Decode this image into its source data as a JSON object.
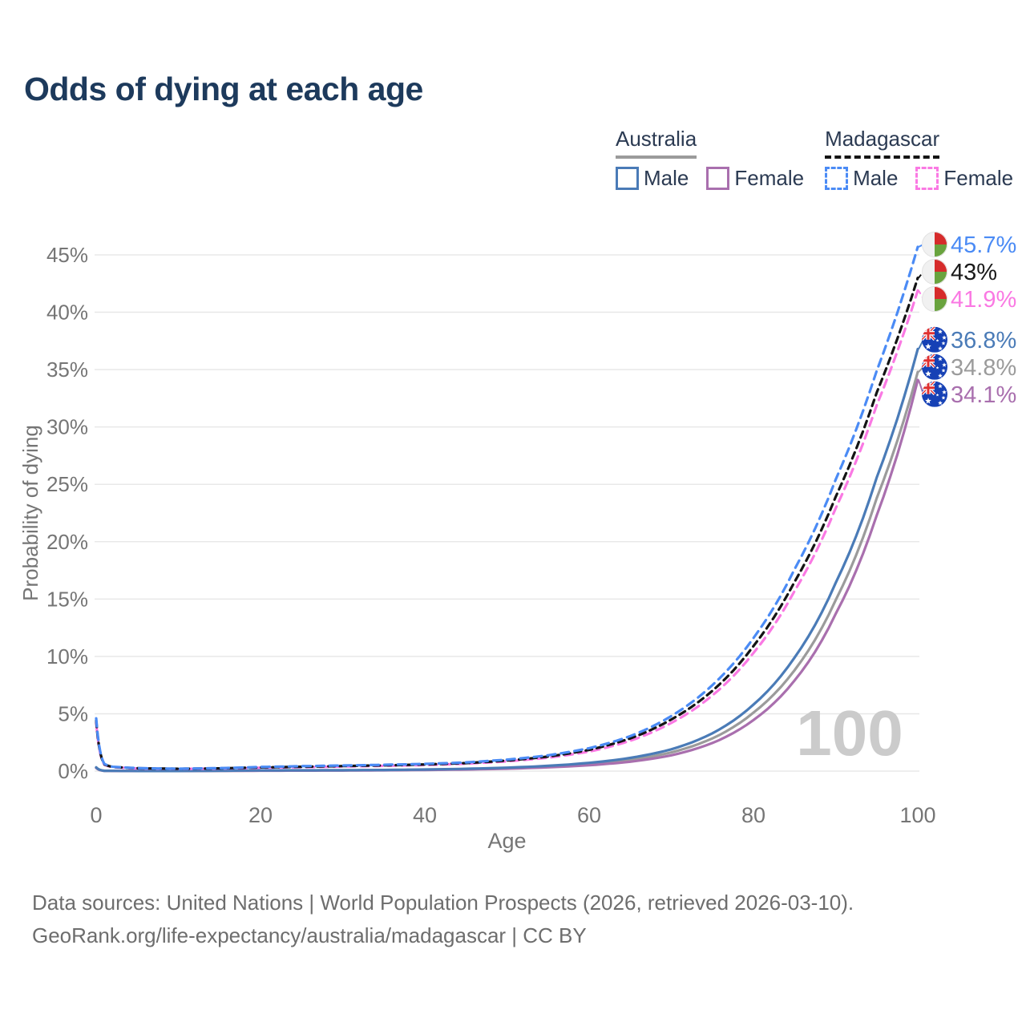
{
  "title": "Odds of dying at each age",
  "legend": {
    "groups": [
      {
        "label": "Australia",
        "line_color": "#9b9b9b",
        "line_style": "solid",
        "items": [
          {
            "label": "Male",
            "color": "#4a7bb7",
            "dash": false
          },
          {
            "label": "Female",
            "color": "#a96fae",
            "dash": false
          }
        ]
      },
      {
        "label": "Madagascar",
        "line_color": "#141414",
        "line_style": "dashed",
        "items": [
          {
            "label": "Male",
            "color": "#4b8bf5",
            "dash": true
          },
          {
            "label": "Female",
            "color": "#fa79e3",
            "dash": true
          }
        ]
      }
    ]
  },
  "age_watermark": "100",
  "footer": {
    "line1": "Data sources: United Nations | World Population Prospects (2026, retrieved 2026-03-10).",
    "line2": "GeoRank.org/life-expectancy/australia/madagascar | CC BY"
  },
  "chart_data": {
    "type": "line",
    "title": "Odds of dying at each age",
    "xlabel": "Age",
    "ylabel": "Probability of dying",
    "xlim": [
      0,
      100
    ],
    "ylim": [
      0,
      46
    ],
    "x_ticks": [
      0,
      20,
      40,
      60,
      80,
      100
    ],
    "y_ticks": [
      0,
      5,
      10,
      15,
      20,
      25,
      30,
      35,
      40,
      45
    ],
    "y_tick_suffix": "%",
    "grid": true,
    "legend_position": "top-right",
    "x": [
      0,
      1,
      2,
      5,
      10,
      15,
      20,
      25,
      30,
      35,
      40,
      45,
      50,
      55,
      60,
      65,
      70,
      75,
      80,
      85,
      90,
      95,
      100
    ],
    "series": [
      {
        "name": "Madagascar Male",
        "country": "Madagascar",
        "sex": "Male",
        "color": "#4b8bf5",
        "label_color": "#4b8bf5",
        "dash": "10 7",
        "flag": "madagascar",
        "end_label": "45.7%",
        "values": [
          4.6,
          0.62,
          0.38,
          0.26,
          0.21,
          0.26,
          0.36,
          0.43,
          0.49,
          0.55,
          0.63,
          0.76,
          1.0,
          1.38,
          2.0,
          3.05,
          4.8,
          7.5,
          11.6,
          17.6,
          25.4,
          34.9,
          45.7
        ]
      },
      {
        "name": "Madagascar Both sexes",
        "country": "Madagascar",
        "sex": "Both",
        "color": "#141414",
        "label_color": "#1a1a1a",
        "dash": "8 6",
        "flag": "madagascar",
        "end_label": "43%",
        "values": [
          4.4,
          0.58,
          0.36,
          0.25,
          0.2,
          0.24,
          0.32,
          0.38,
          0.44,
          0.5,
          0.58,
          0.7,
          0.92,
          1.27,
          1.85,
          2.85,
          4.5,
          7.0,
          10.9,
          16.5,
          23.9,
          33.0,
          43.0
        ]
      },
      {
        "name": "Madagascar Female",
        "country": "Madagascar",
        "sex": "Female",
        "color": "#fa79e3",
        "label_color": "#fa79e3",
        "dash": "10 7",
        "flag": "madagascar",
        "end_label": "41.9%",
        "values": [
          4.2,
          0.55,
          0.34,
          0.23,
          0.19,
          0.22,
          0.29,
          0.34,
          0.4,
          0.46,
          0.53,
          0.65,
          0.85,
          1.17,
          1.7,
          2.65,
          4.2,
          6.6,
          10.3,
          15.7,
          22.9,
          31.9,
          41.9
        ]
      },
      {
        "name": "Australia Male",
        "country": "Australia",
        "sex": "Male",
        "color": "#4a7bb7",
        "label_color": "#4a7bb7",
        "dash": null,
        "flag": "australia",
        "end_label": "36.8%",
        "values": [
          0.33,
          0.03,
          0.02,
          0.01,
          0.01,
          0.035,
          0.06,
          0.07,
          0.08,
          0.1,
          0.14,
          0.2,
          0.3,
          0.46,
          0.72,
          1.15,
          1.9,
          3.3,
          5.8,
          9.9,
          16.4,
          25.6,
          36.8
        ]
      },
      {
        "name": "Australia Both sexes",
        "country": "Australia",
        "sex": "Both",
        "color": "#9b9b9b",
        "label_color": "#9b9b9b",
        "dash": null,
        "flag": "australia",
        "end_label": "34.8%",
        "values": [
          0.3,
          0.027,
          0.018,
          0.01,
          0.01,
          0.028,
          0.047,
          0.056,
          0.066,
          0.085,
          0.12,
          0.17,
          0.26,
          0.39,
          0.61,
          0.98,
          1.63,
          2.85,
          5.1,
          8.8,
          14.9,
          23.8,
          34.8
        ]
      },
      {
        "name": "Australia Female",
        "country": "Australia",
        "sex": "Female",
        "color": "#a96fae",
        "label_color": "#a96fae",
        "dash": null,
        "flag": "australia",
        "end_label": "34.1%",
        "values": [
          0.27,
          0.024,
          0.016,
          0.009,
          0.009,
          0.022,
          0.033,
          0.042,
          0.052,
          0.07,
          0.1,
          0.14,
          0.21,
          0.33,
          0.51,
          0.82,
          1.38,
          2.45,
          4.45,
          7.9,
          13.7,
          22.3,
          34.1
        ]
      }
    ]
  }
}
